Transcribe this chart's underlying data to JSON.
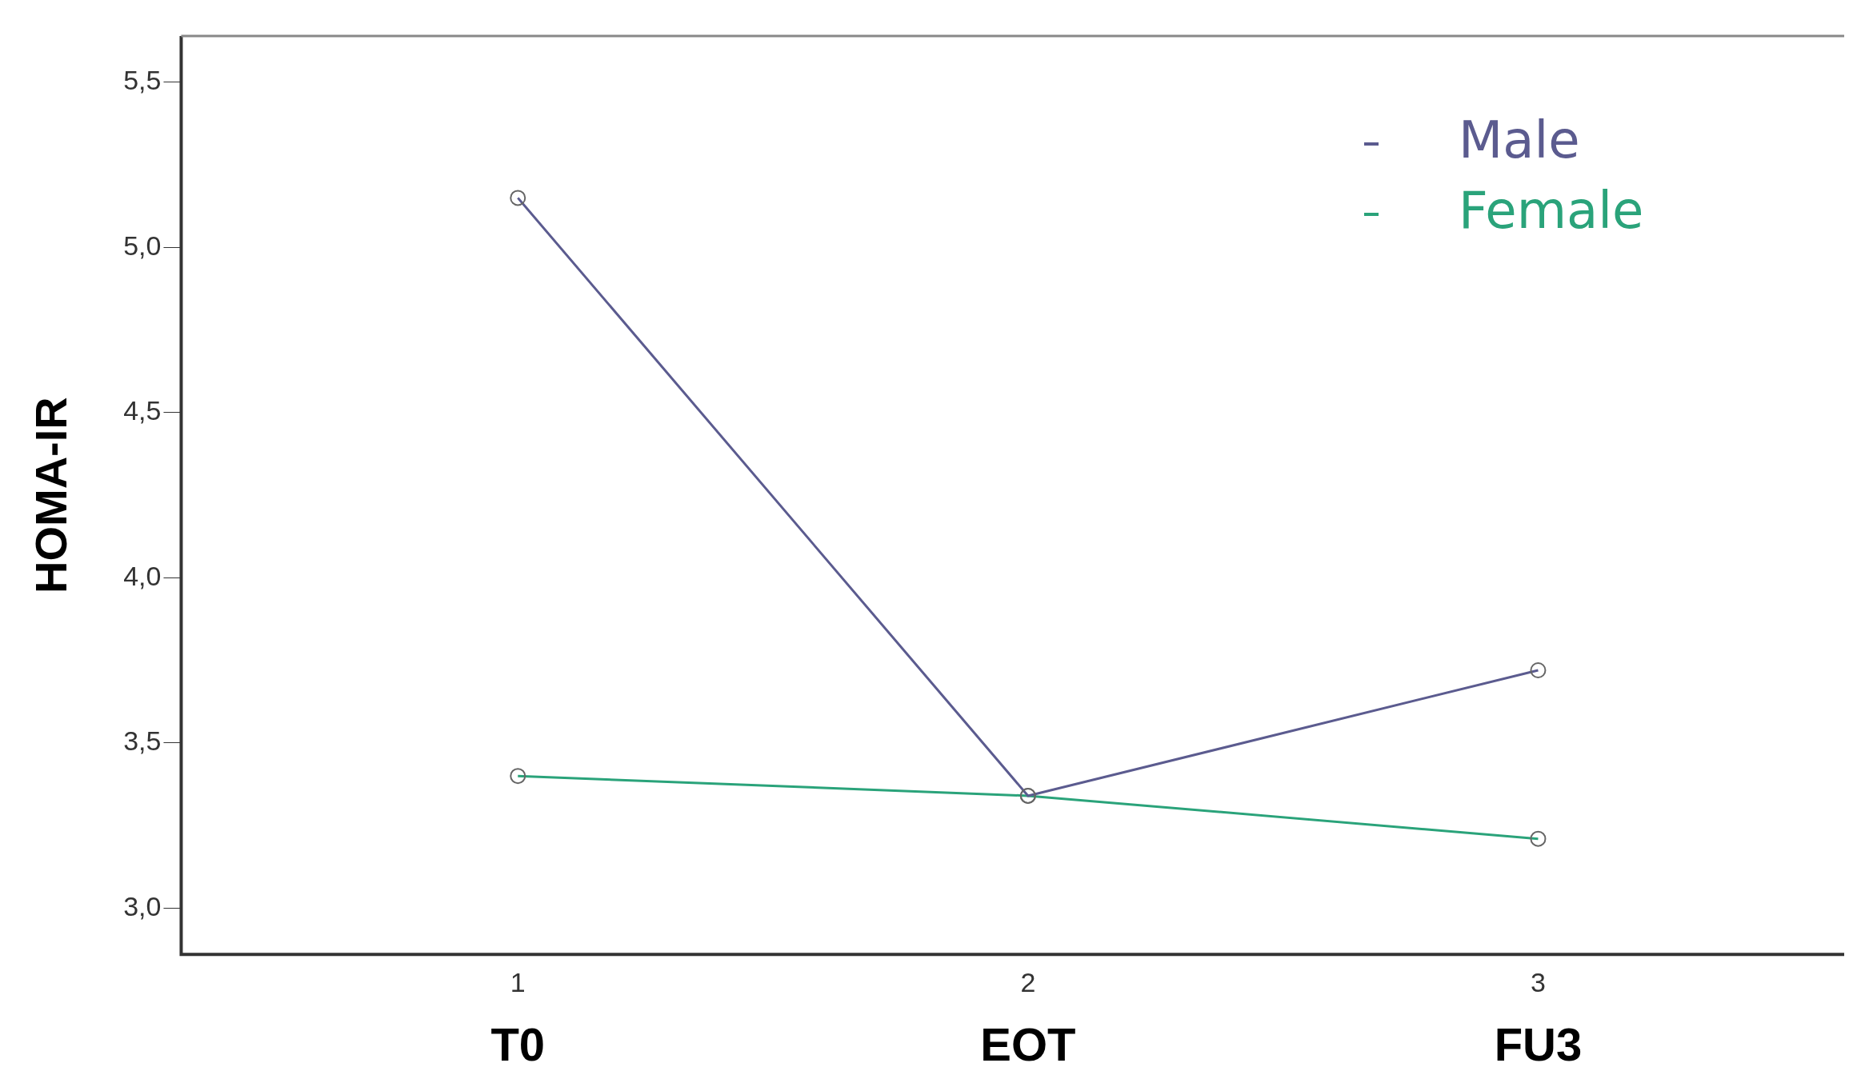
{
  "chart_data": {
    "type": "line",
    "ylabel": "HOMA-IR",
    "x": [
      1,
      2,
      3
    ],
    "xlim": [
      0.34,
      3.6
    ],
    "xticks": [
      1,
      2,
      3
    ],
    "ylim": [
      2.86,
      5.64
    ],
    "yticks": [
      {
        "value": 3.0,
        "label": "3,0"
      },
      {
        "value": 3.5,
        "label": "3,5"
      },
      {
        "value": 4.0,
        "label": "4,0"
      },
      {
        "value": 4.5,
        "label": "4,5"
      },
      {
        "value": 5.0,
        "label": "5,0"
      },
      {
        "value": 5.5,
        "label": "5,5"
      }
    ],
    "series": [
      {
        "name": "Male",
        "color": "#5b5b8f",
        "values": [
          5.15,
          3.34,
          3.72
        ]
      },
      {
        "name": "Female",
        "color": "#2aa37a",
        "values": [
          3.4,
          3.34,
          3.21
        ]
      }
    ],
    "annotations": [
      "T0",
      "EOT",
      "FU3"
    ],
    "marker": "circle",
    "line_style": "solid",
    "legend": "top right",
    "grid": false
  }
}
